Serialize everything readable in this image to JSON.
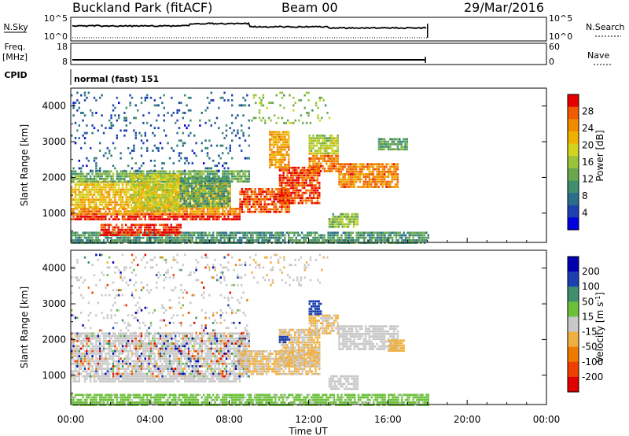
{
  "header": {
    "station": "Buckland Park (fitACF)",
    "beam": "Beam 00",
    "date": "29/Mar/2016"
  },
  "strip_labels": {
    "nsky": "N.Sky",
    "nsky_hi": "10^5",
    "nsky_lo": "10^0",
    "nsearch": "N.Search",
    "nsearch_hi": "10^5",
    "nsearch_lo": "10^0",
    "freq_label_1": "Freq.",
    "freq_label_2": "[MHz]",
    "freq_hi": "18",
    "freq_lo": "8",
    "nave": "Nave",
    "nave_hi": "60",
    "nave_lo": "0",
    "cpid": "CPID",
    "mode": "normal (fast) 151"
  },
  "chart_data": [
    {
      "type": "heatmap",
      "name": "power",
      "xlabel": "Time UT",
      "ylabel": "Slant Range [km]",
      "xlim": [
        "00:00",
        "24:00"
      ],
      "ylim": [
        180,
        4500
      ],
      "x_ticks": [
        "00:00",
        "04:00",
        "08:00",
        "12:00",
        "16:00",
        "20:00",
        "00:00"
      ],
      "y_ticks": [
        1000,
        2000,
        3000,
        4000
      ],
      "colorbar_label": "Power [dB]",
      "colorbar_ticks": [
        "28",
        "24",
        "20",
        "16",
        "12",
        "8",
        "4"
      ],
      "colorbar_range": [
        0,
        30
      ],
      "data_end_time": "18:00",
      "regions": [
        {
          "t0": 0.0,
          "t1": 8.5,
          "r0": 850,
          "r1": 1000,
          "v": 29
        },
        {
          "t0": 0.0,
          "t1": 8.5,
          "r0": 1000,
          "r1": 1150,
          "v": 23
        },
        {
          "t0": 0.0,
          "t1": 8.0,
          "r0": 1150,
          "r1": 1900,
          "v": 20
        },
        {
          "t0": 0.0,
          "t1": 9.0,
          "r0": 1900,
          "r1": 2200,
          "v": 12
        },
        {
          "t0": 3.0,
          "t1": 5.5,
          "r0": 1100,
          "r1": 2100,
          "v": 17
        },
        {
          "t0": 5.5,
          "t1": 8.0,
          "r0": 1200,
          "r1": 2000,
          "v": 11
        },
        {
          "t0": 8.5,
          "t1": 11.0,
          "r0": 1000,
          "r1": 1700,
          "v": 26
        },
        {
          "t0": 10.5,
          "t1": 12.5,
          "r0": 1300,
          "r1": 2300,
          "v": 27
        },
        {
          "t0": 12.0,
          "t1": 13.5,
          "r0": 2200,
          "r1": 2700,
          "v": 24
        },
        {
          "t0": 13.5,
          "t1": 16.5,
          "r0": 1700,
          "r1": 2400,
          "v": 24
        },
        {
          "t0": 10.0,
          "t1": 11.0,
          "r0": 2300,
          "r1": 3300,
          "v": 22
        },
        {
          "t0": 12.0,
          "t1": 13.5,
          "r0": 2700,
          "r1": 3200,
          "v": 16
        },
        {
          "t0": 15.5,
          "t1": 17.0,
          "r0": 2800,
          "r1": 3100,
          "v": 11
        },
        {
          "t0": 13.0,
          "t1": 14.5,
          "r0": 600,
          "r1": 1000,
          "v": 14
        },
        {
          "t0": 0.0,
          "t1": 18.0,
          "r0": 180,
          "r1": 480,
          "v": 10
        },
        {
          "t0": 1.5,
          "t1": 5.5,
          "r0": 400,
          "r1": 700,
          "v": 28
        },
        {
          "t0": 0.0,
          "t1": 9.0,
          "r0": 2200,
          "r1": 4400,
          "v": 6,
          "sparse": true
        },
        {
          "t0": 9.0,
          "t1": 13.0,
          "r0": 3500,
          "r1": 4400,
          "v": 14,
          "sparse": true
        }
      ]
    },
    {
      "type": "heatmap",
      "name": "velocity",
      "xlabel": "Time UT",
      "ylabel": "Slant Range [km]",
      "xlim": [
        "00:00",
        "24:00"
      ],
      "ylim": [
        180,
        4500
      ],
      "x_ticks": [
        "00:00",
        "04:00",
        "08:00",
        "12:00",
        "16:00",
        "20:00",
        "00:00"
      ],
      "y_ticks": [
        1000,
        2000,
        3000,
        4000
      ],
      "colorbar_label": "Velocity [m s^-1]",
      "colorbar_ticks": [
        "200",
        "100",
        "50",
        "15",
        "-15",
        "-50",
        "-100",
        "-200"
      ],
      "colorbar_range": [
        -250,
        250
      ],
      "data_end_time": "18:00",
      "regions": [
        {
          "t0": 0.0,
          "t1": 8.5,
          "r0": 850,
          "r1": 1000,
          "v": 0
        },
        {
          "t0": 0.0,
          "t1": 9.0,
          "r0": 1000,
          "r1": 2200,
          "v": 0,
          "mixed": true
        },
        {
          "t0": 8.5,
          "t1": 12.5,
          "r0": 1000,
          "r1": 1700,
          "v": -30
        },
        {
          "t0": 10.5,
          "t1": 12.5,
          "r0": 1300,
          "r1": 2300,
          "v": -30
        },
        {
          "t0": 12.0,
          "t1": 13.5,
          "r0": 2200,
          "r1": 2700,
          "v": -30
        },
        {
          "t0": 13.5,
          "t1": 16.5,
          "r0": 1700,
          "r1": 2400,
          "v": 0
        },
        {
          "t0": 10.5,
          "t1": 11.0,
          "r0": 1900,
          "r1": 2100,
          "v": 180
        },
        {
          "t0": 12.0,
          "t1": 12.6,
          "r0": 2700,
          "r1": 3100,
          "v": 160
        },
        {
          "t0": 16.0,
          "t1": 16.8,
          "r0": 1700,
          "r1": 2000,
          "v": -60
        },
        {
          "t0": 13.0,
          "t1": 14.5,
          "r0": 600,
          "r1": 1000,
          "v": 0
        },
        {
          "t0": 0.0,
          "t1": 18.0,
          "r0": 180,
          "r1": 480,
          "v": 40
        },
        {
          "t0": 0.0,
          "t1": 9.0,
          "r0": 2200,
          "r1": 4400,
          "v": 0,
          "sparse": true,
          "mixed": true
        },
        {
          "t0": 9.0,
          "t1": 13.0,
          "r0": 3500,
          "r1": 4400,
          "v": -20,
          "sparse": true
        }
      ]
    }
  ],
  "palettes": {
    "power": [
      "#0000e0",
      "#1c40b0",
      "#2a6f8a",
      "#3f8f6e",
      "#6aa84f",
      "#9ac33a",
      "#d4d41e",
      "#f0b000",
      "#f08a00",
      "#f05a00",
      "#e60000"
    ],
    "velocity": [
      "#e00000",
      "#f04000",
      "#f07a00",
      "#f0b040",
      "#c8c8c8",
      "#6cc03a",
      "#3f8f6e",
      "#1c40b0",
      "#0000b0"
    ]
  }
}
